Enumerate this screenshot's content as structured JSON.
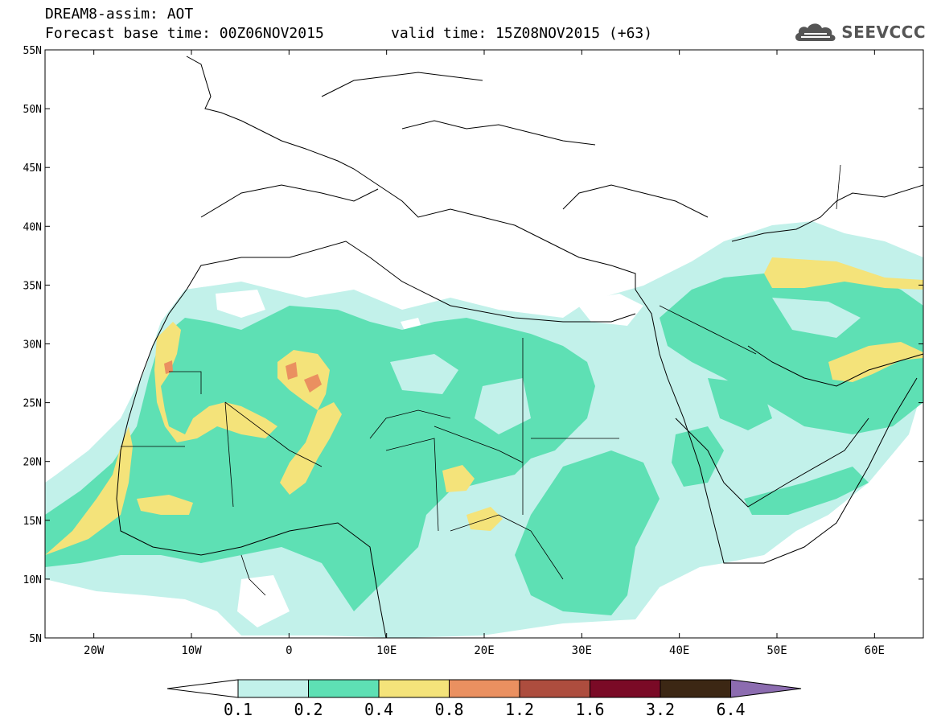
{
  "header": {
    "line1": "DREAM8-assim: AOT",
    "line2": "Forecast base time: 00Z06NOV2015",
    "line3": "valid time: 15Z08NOV2015 (+63)"
  },
  "logo": {
    "text": "SEEVCCC",
    "icon": "cloud-icon"
  },
  "map": {
    "lat_labels": [
      "55N",
      "50N",
      "45N",
      "40N",
      "35N",
      "30N",
      "25N",
      "20N",
      "15N",
      "10N",
      "5N"
    ],
    "lon_labels": [
      "20W",
      "10W",
      "0",
      "10E",
      "20E",
      "30E",
      "40E",
      "50E",
      "60E"
    ],
    "extent": {
      "lon": [
        -25,
        65
      ],
      "lat": [
        5,
        55
      ]
    }
  },
  "colorbar": {
    "labels": [
      "0.1",
      "0.2",
      "0.4",
      "0.8",
      "1.2",
      "1.6",
      "3.2",
      "6.4"
    ],
    "colors": [
      "#c2f1ea",
      "#5ee0b4",
      "#f4e37a",
      "#ea9060",
      "#ad4d3e",
      "#7a0a26",
      "#3c2714",
      "#8c6cb0"
    ]
  }
}
